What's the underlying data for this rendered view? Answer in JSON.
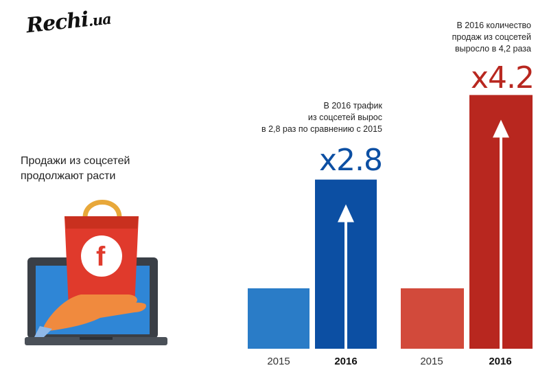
{
  "brand": {
    "logo_text": "Rechi",
    "logo_suffix": ".ua"
  },
  "headline": {
    "line1": "Продажи из соцсетей",
    "line2": "продолжают расти"
  },
  "icons": {
    "illustration": "laptop-shopping-bag-facebook-icon",
    "facebook_glyph": "f"
  },
  "colors": {
    "blue_2015": "#2A7CC7",
    "blue_2016": "#0C4FA3",
    "red_2015": "#D24A3B",
    "red_2016": "#B8271F",
    "bag_red": "#E03A2C",
    "bag_handle": "#E8A83A",
    "hand": "#F08A3E",
    "laptop_frame": "#3A3F46",
    "laptop_screen": "#2F86D6"
  },
  "chart_data": [
    {
      "type": "bar",
      "categories": [
        "2015",
        "2016"
      ],
      "values": [
        1,
        2.8
      ],
      "multiplier_label": "x2.8",
      "note_lines": [
        "В 2016 трафик",
        "из соцсетей вырос",
        "в 2,8 раз по сравнению с 2015"
      ]
    },
    {
      "type": "bar",
      "categories": [
        "2015",
        "2016"
      ],
      "values": [
        1,
        4.2
      ],
      "multiplier_label": "x4.2",
      "note_lines": [
        "В 2016 количество",
        "продаж из соцсетей",
        "выросло в 4,2 раза"
      ]
    }
  ]
}
